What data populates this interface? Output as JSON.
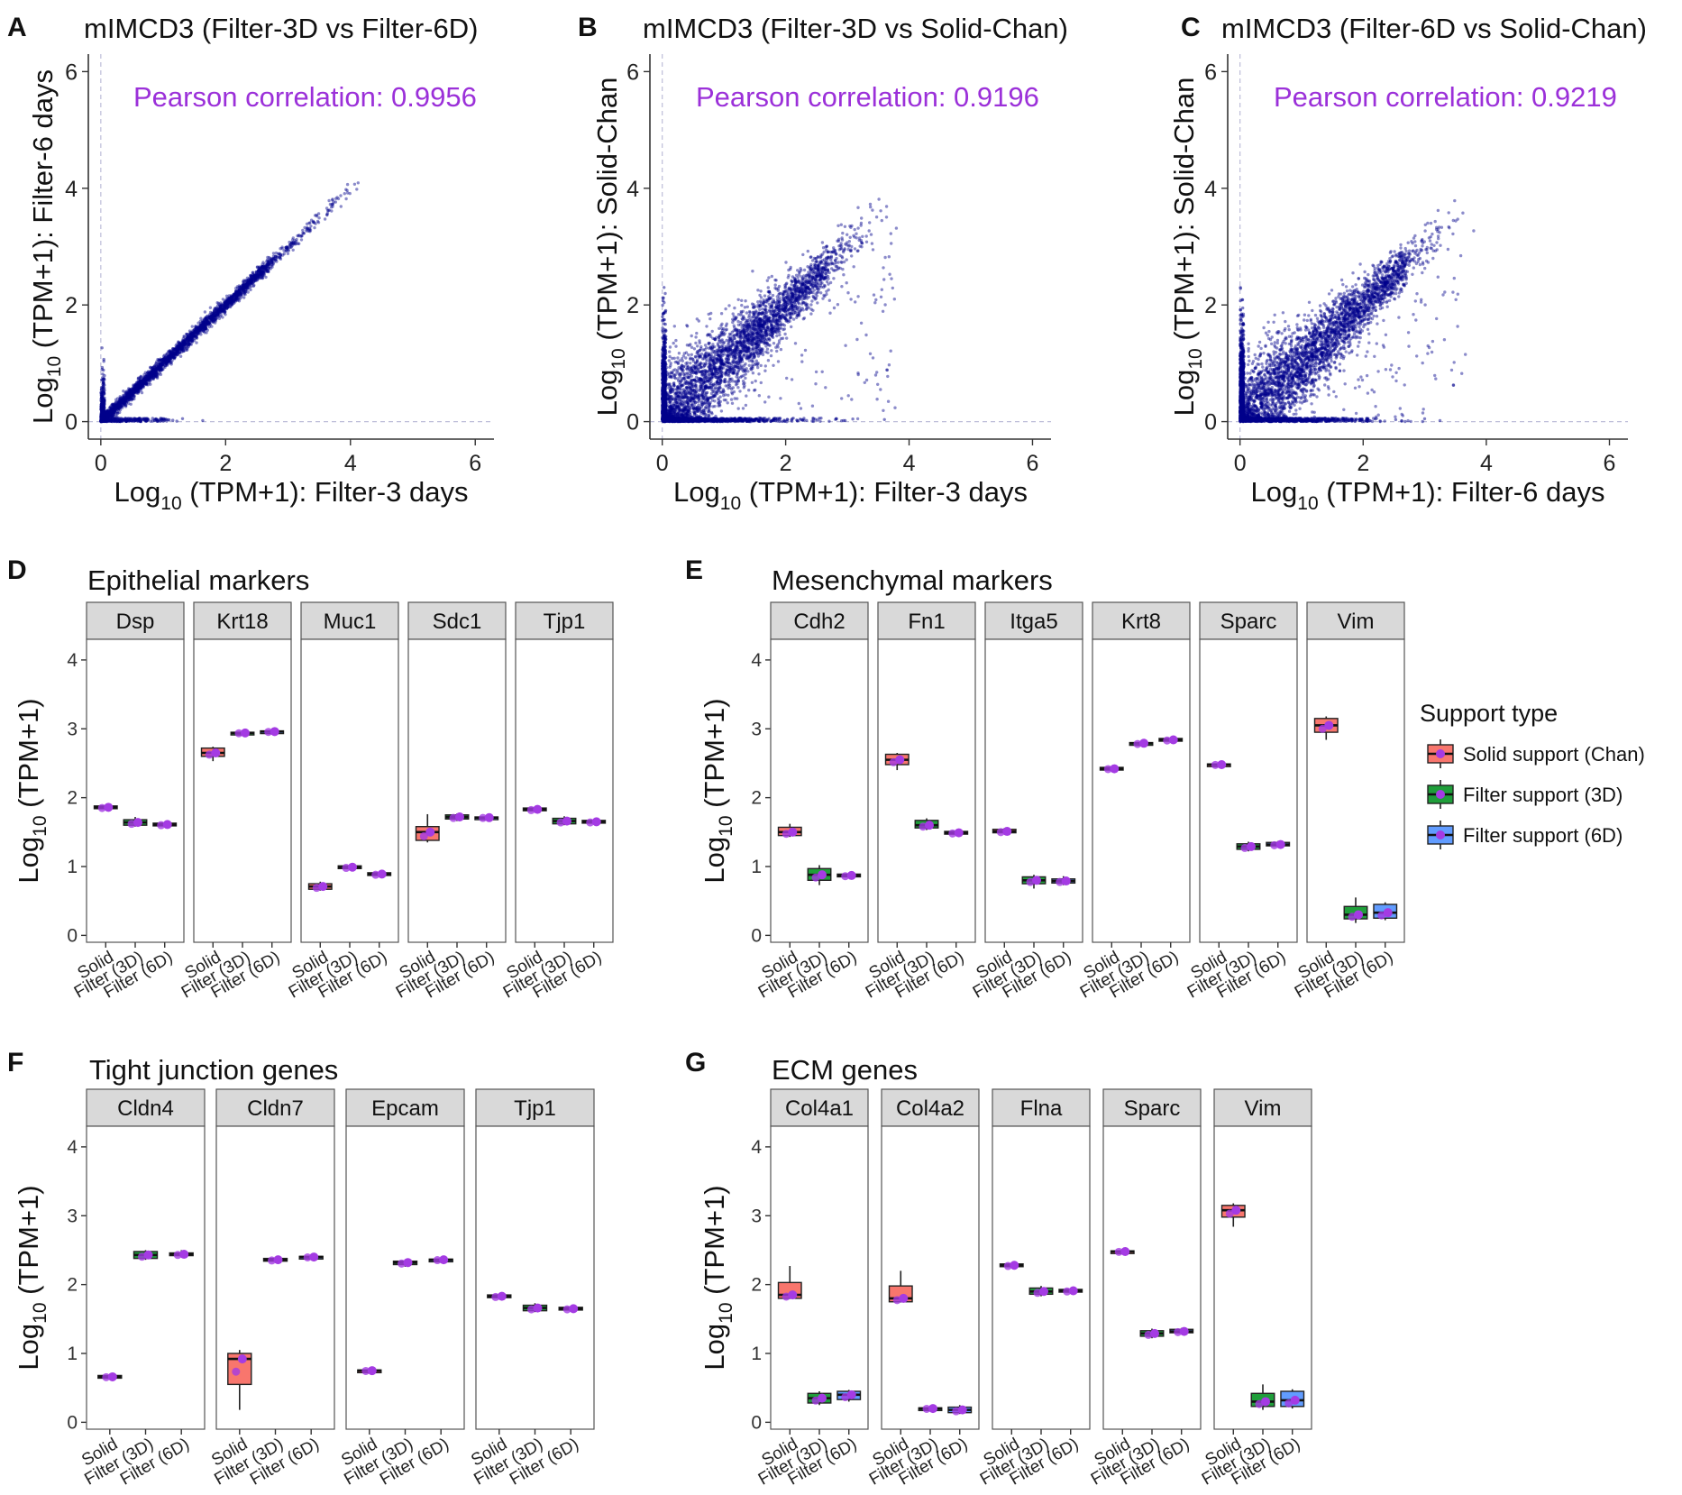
{
  "colors": {
    "scatter_point": "#00008b",
    "pearson_text": "#9b30d9",
    "point_overlay": "#a43be3",
    "solid": "#f8766d",
    "filter3d": "#1f9e3a",
    "filter6d": "#619cff",
    "strip": "#d9d9d9"
  },
  "scatter_panels": [
    {
      "letter": "A",
      "title": "mIMCD3 (Filter-3D vs Filter-6D)",
      "pearson": "Pearson correlation: 0.9956",
      "r": 0.9956,
      "xlabel_pre": "Log",
      "xlabel_sub": "10",
      "xlabel_post": " (TPM+1): Filter-3 days",
      "ylabel_pre": "Log",
      "ylabel_sub": "10",
      "ylabel_post": " (TPM+1): Filter-6 days"
    },
    {
      "letter": "B",
      "title": "mIMCD3 (Filter-3D vs Solid-Chan)",
      "pearson": "Pearson correlation: 0.9196",
      "r": 0.9196,
      "xlabel_pre": "Log",
      "xlabel_sub": "10",
      "xlabel_post": " (TPM+1): Filter-3 days",
      "ylabel_pre": "Log",
      "ylabel_sub": "10",
      "ylabel_post": " (TPM+1): Solid-Chan"
    },
    {
      "letter": "C",
      "title": "mIMCD3 (Filter-6D vs Solid-Chan)",
      "pearson": "Pearson correlation: 0.9219",
      "r": 0.9219,
      "xlabel_pre": "Log",
      "xlabel_sub": "10",
      "xlabel_post": " (TPM+1): Filter-6 days",
      "ylabel_pre": "Log",
      "ylabel_sub": "10",
      "ylabel_post": " (TPM+1): Solid-Chan"
    }
  ],
  "scatter_ticks": [
    "0",
    "2",
    "4",
    "6"
  ],
  "box_ylabel": {
    "pre": "Log",
    "sub": "10",
    "post": " (TPM+1)"
  },
  "box_yticks": [
    "0",
    "1",
    "2",
    "3",
    "4"
  ],
  "categories": [
    "Solid",
    "Filter (3D)",
    "Filter (6D)"
  ],
  "legend": {
    "title": "Support type",
    "items": [
      "Solid support (Chan)",
      "Filter support (3D)",
      "Filter support (6D)"
    ]
  },
  "chart_data": [
    {
      "panel": "A",
      "type": "scatter",
      "title": "mIMCD3 (Filter-3D vs Filter-6D)",
      "xlabel": "Log10 (TPM+1): Filter-3 days",
      "ylabel": "Log10 (TPM+1): Filter-6 days",
      "xlim": [
        -0.2,
        6.3
      ],
      "ylim": [
        -0.3,
        6.3
      ],
      "annotation": "Pearson correlation: 0.9956"
    },
    {
      "panel": "B",
      "type": "scatter",
      "title": "mIMCD3 (Filter-3D vs Solid-Chan)",
      "xlabel": "Log10 (TPM+1): Filter-3 days",
      "ylabel": "Log10 (TPM+1): Solid-Chan",
      "xlim": [
        -0.2,
        6.3
      ],
      "ylim": [
        -0.3,
        6.3
      ],
      "annotation": "Pearson correlation: 0.9196"
    },
    {
      "panel": "C",
      "type": "scatter",
      "title": "mIMCD3 (Filter-6D vs Solid-Chan)",
      "xlabel": "Log10 (TPM+1): Filter-6 days",
      "ylabel": "Log10 (TPM+1): Solid-Chan",
      "xlim": [
        -0.2,
        6.3
      ],
      "ylim": [
        -0.3,
        6.3
      ],
      "annotation": "Pearson correlation: 0.9219"
    },
    {
      "panel": "D",
      "type": "box",
      "title": "Epithelial markers",
      "ylabel": "Log10 (TPM+1)",
      "ylim": [
        -0.1,
        4.3
      ],
      "categories": [
        "Solid",
        "Filter (3D)",
        "Filter (6D)"
      ],
      "facets": [
        {
          "gene": "Dsp",
          "boxes": [
            {
              "min": 1.82,
              "q1": 1.84,
              "med": 1.86,
              "q3": 1.88,
              "max": 1.9
            },
            {
              "min": 1.58,
              "q1": 1.6,
              "med": 1.64,
              "q3": 1.68,
              "max": 1.72
            },
            {
              "min": 1.57,
              "q1": 1.59,
              "med": 1.61,
              "q3": 1.63,
              "max": 1.65
            }
          ]
        },
        {
          "gene": "Krt18",
          "boxes": [
            {
              "min": 2.53,
              "q1": 2.6,
              "med": 2.65,
              "q3": 2.72,
              "max": 2.74
            },
            {
              "min": 2.92,
              "q1": 2.93,
              "med": 2.94,
              "q3": 2.95,
              "max": 2.96
            },
            {
              "min": 2.94,
              "q1": 2.95,
              "med": 2.96,
              "q3": 2.97,
              "max": 2.98
            }
          ]
        },
        {
          "gene": "Muc1",
          "boxes": [
            {
              "min": 0.65,
              "q1": 0.67,
              "med": 0.71,
              "q3": 0.75,
              "max": 0.78
            },
            {
              "min": 0.95,
              "q1": 0.97,
              "med": 0.99,
              "q3": 1.01,
              "max": 1.03
            },
            {
              "min": 0.86,
              "q1": 0.87,
              "med": 0.89,
              "q3": 0.91,
              "max": 0.92
            }
          ]
        },
        {
          "gene": "Sdc1",
          "boxes": [
            {
              "min": 1.35,
              "q1": 1.38,
              "med": 1.5,
              "q3": 1.58,
              "max": 1.76
            },
            {
              "min": 1.66,
              "q1": 1.69,
              "med": 1.72,
              "q3": 1.75,
              "max": 1.77
            },
            {
              "min": 1.69,
              "q1": 1.7,
              "med": 1.71,
              "q3": 1.72,
              "max": 1.74
            }
          ]
        },
        {
          "gene": "Tjp1",
          "boxes": [
            {
              "min": 1.8,
              "q1": 1.81,
              "med": 1.83,
              "q3": 1.85,
              "max": 1.86
            },
            {
              "min": 1.6,
              "q1": 1.62,
              "med": 1.66,
              "q3": 1.7,
              "max": 1.73
            },
            {
              "min": 1.62,
              "q1": 1.63,
              "med": 1.65,
              "q3": 1.67,
              "max": 1.69
            }
          ]
        }
      ]
    },
    {
      "panel": "E",
      "type": "box",
      "title": "Mesenchymal markers",
      "ylabel": "Log10 (TPM+1)",
      "ylim": [
        -0.1,
        4.3
      ],
      "categories": [
        "Solid",
        "Filter (3D)",
        "Filter (6D)"
      ],
      "facets": [
        {
          "gene": "Cdh2",
          "boxes": [
            {
              "min": 1.43,
              "q1": 1.45,
              "med": 1.5,
              "q3": 1.57,
              "max": 1.62
            },
            {
              "min": 0.73,
              "q1": 0.8,
              "med": 0.88,
              "q3": 0.97,
              "max": 1.02
            },
            {
              "min": 0.83,
              "q1": 0.85,
              "med": 0.87,
              "q3": 0.89,
              "max": 0.91
            }
          ]
        },
        {
          "gene": "Fn1",
          "boxes": [
            {
              "min": 2.4,
              "q1": 2.48,
              "med": 2.55,
              "q3": 2.63,
              "max": 2.65
            },
            {
              "min": 1.53,
              "q1": 1.56,
              "med": 1.6,
              "q3": 1.67,
              "max": 1.7
            },
            {
              "min": 1.45,
              "q1": 1.47,
              "med": 1.49,
              "q3": 1.51,
              "max": 1.53
            }
          ]
        },
        {
          "gene": "Itga5",
          "boxes": [
            {
              "min": 1.47,
              "q1": 1.49,
              "med": 1.51,
              "q3": 1.54,
              "max": 1.56
            },
            {
              "min": 0.68,
              "q1": 0.75,
              "med": 0.8,
              "q3": 0.85,
              "max": 0.88
            },
            {
              "min": 0.73,
              "q1": 0.76,
              "med": 0.79,
              "q3": 0.82,
              "max": 0.86
            }
          ]
        },
        {
          "gene": "Krt8",
          "boxes": [
            {
              "min": 2.4,
              "q1": 2.41,
              "med": 2.42,
              "q3": 2.44,
              "max": 2.45
            },
            {
              "min": 2.76,
              "q1": 2.77,
              "med": 2.79,
              "q3": 2.8,
              "max": 2.81
            },
            {
              "min": 2.8,
              "q1": 2.82,
              "med": 2.84,
              "q3": 2.86,
              "max": 2.88
            }
          ]
        },
        {
          "gene": "Sparc",
          "boxes": [
            {
              "min": 2.46,
              "q1": 2.47,
              "med": 2.48,
              "q3": 2.49,
              "max": 2.5
            },
            {
              "min": 1.22,
              "q1": 1.25,
              "med": 1.29,
              "q3": 1.33,
              "max": 1.36
            },
            {
              "min": 1.28,
              "q1": 1.3,
              "med": 1.32,
              "q3": 1.35,
              "max": 1.37
            }
          ]
        },
        {
          "gene": "Vim",
          "boxes": [
            {
              "min": 2.84,
              "q1": 2.95,
              "med": 3.05,
              "q3": 3.15,
              "max": 3.18
            },
            {
              "min": 0.18,
              "q1": 0.24,
              "med": 0.3,
              "q3": 0.42,
              "max": 0.55
            },
            {
              "min": 0.22,
              "q1": 0.25,
              "med": 0.33,
              "q3": 0.45,
              "max": 0.48
            }
          ]
        }
      ]
    },
    {
      "panel": "F",
      "type": "box",
      "title": "Tight junction genes",
      "ylabel": "Log10 (TPM+1)",
      "ylim": [
        -0.1,
        4.3
      ],
      "categories": [
        "Solid",
        "Filter (3D)",
        "Filter (6D)"
      ],
      "facets": [
        {
          "gene": "Cldn4",
          "boxes": [
            {
              "min": 0.64,
              "q1": 0.65,
              "med": 0.66,
              "q3": 0.68,
              "max": 0.69
            },
            {
              "min": 2.36,
              "q1": 2.38,
              "med": 2.43,
              "q3": 2.48,
              "max": 2.5
            },
            {
              "min": 2.41,
              "q1": 2.42,
              "med": 2.44,
              "q3": 2.46,
              "max": 2.5
            }
          ]
        },
        {
          "gene": "Cldn7",
          "boxes": [
            {
              "min": 0.18,
              "q1": 0.55,
              "med": 0.92,
              "q3": 1.0,
              "max": 1.05
            },
            {
              "min": 2.33,
              "q1": 2.34,
              "med": 2.36,
              "q3": 2.38,
              "max": 2.4
            },
            {
              "min": 2.38,
              "q1": 2.39,
              "med": 2.4,
              "q3": 2.41,
              "max": 2.42
            }
          ]
        },
        {
          "gene": "Epcam",
          "boxes": [
            {
              "min": 0.73,
              "q1": 0.74,
              "med": 0.75,
              "q3": 0.76,
              "max": 0.77
            },
            {
              "min": 2.26,
              "q1": 2.29,
              "med": 2.32,
              "q3": 2.34,
              "max": 2.36
            },
            {
              "min": 2.34,
              "q1": 2.35,
              "med": 2.36,
              "q3": 2.37,
              "max": 2.38
            }
          ]
        },
        {
          "gene": "Tjp1",
          "boxes": [
            {
              "min": 1.8,
              "q1": 1.81,
              "med": 1.83,
              "q3": 1.85,
              "max": 1.86
            },
            {
              "min": 1.6,
              "q1": 1.62,
              "med": 1.66,
              "q3": 1.7,
              "max": 1.73
            },
            {
              "min": 1.62,
              "q1": 1.63,
              "med": 1.65,
              "q3": 1.67,
              "max": 1.69
            }
          ]
        }
      ]
    },
    {
      "panel": "G",
      "type": "box",
      "title": "ECM genes",
      "ylabel": "Log10 (TPM+1)",
      "ylim": [
        -0.1,
        4.3
      ],
      "categories": [
        "Solid",
        "Filter (3D)",
        "Filter (6D)"
      ],
      "facets": [
        {
          "gene": "Col4a1",
          "boxes": [
            {
              "min": 1.8,
              "q1": 1.8,
              "med": 1.85,
              "q3": 2.03,
              "max": 2.27
            },
            {
              "min": 0.25,
              "q1": 0.28,
              "med": 0.35,
              "q3": 0.42,
              "max": 0.45
            },
            {
              "min": 0.3,
              "q1": 0.33,
              "med": 0.4,
              "q3": 0.45,
              "max": 0.47
            }
          ]
        },
        {
          "gene": "Col4a2",
          "boxes": [
            {
              "min": 1.75,
              "q1": 1.75,
              "med": 1.8,
              "q3": 1.98,
              "max": 2.2
            },
            {
              "min": 0.18,
              "q1": 0.19,
              "med": 0.2,
              "q3": 0.21,
              "max": 0.22
            },
            {
              "min": 0.12,
              "q1": 0.14,
              "med": 0.18,
              "q3": 0.22,
              "max": 0.25
            }
          ]
        },
        {
          "gene": "Flna",
          "boxes": [
            {
              "min": 2.25,
              "q1": 2.26,
              "med": 2.28,
              "q3": 2.3,
              "max": 2.31
            },
            {
              "min": 1.83,
              "q1": 1.86,
              "med": 1.9,
              "q3": 1.95,
              "max": 1.98
            },
            {
              "min": 1.87,
              "q1": 1.89,
              "med": 1.91,
              "q3": 1.93,
              "max": 1.95
            }
          ]
        },
        {
          "gene": "Sparc",
          "boxes": [
            {
              "min": 2.46,
              "q1": 2.47,
              "med": 2.48,
              "q3": 2.49,
              "max": 2.5
            },
            {
              "min": 1.22,
              "q1": 1.25,
              "med": 1.29,
              "q3": 1.33,
              "max": 1.36
            },
            {
              "min": 1.28,
              "q1": 1.3,
              "med": 1.32,
              "q3": 1.35,
              "max": 1.37
            }
          ]
        },
        {
          "gene": "Vim",
          "boxes": [
            {
              "min": 2.84,
              "q1": 2.98,
              "med": 3.08,
              "q3": 3.15,
              "max": 3.18
            },
            {
              "min": 0.18,
              "q1": 0.23,
              "med": 0.3,
              "q3": 0.42,
              "max": 0.55
            },
            {
              "min": 0.2,
              "q1": 0.23,
              "med": 0.32,
              "q3": 0.45,
              "max": 0.48
            }
          ]
        }
      ]
    }
  ]
}
